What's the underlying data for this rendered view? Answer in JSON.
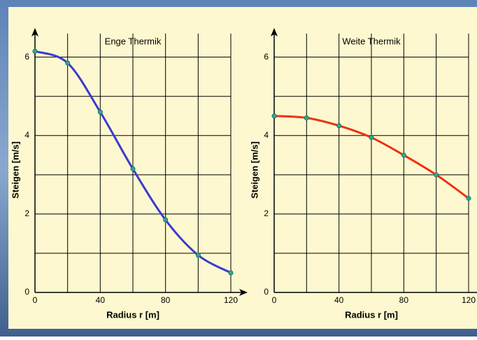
{
  "chart_data": [
    {
      "type": "line",
      "title": "Enge Thermik",
      "x_label": "Radius r [m]",
      "y_label": "Steigen [m/s]",
      "x": [
        0,
        20,
        40,
        60,
        80,
        100,
        120
      ],
      "series": [
        {
          "color": "#3a3ad0",
          "values": [
            6.15,
            5.85,
            4.6,
            3.15,
            1.85,
            0.95,
            0.5
          ]
        }
      ],
      "xlim": [
        0,
        120
      ],
      "xticks": [
        0,
        40,
        80,
        120
      ],
      "xminor": [
        20,
        60,
        100
      ],
      "ylim": [
        0,
        6.6
      ],
      "yticks": [
        0,
        2,
        4,
        6
      ],
      "yminor": [
        1,
        3,
        5
      ],
      "grid": true
    },
    {
      "type": "line",
      "title": "Weite Thermik",
      "x_label": "Radius r [m]",
      "y_label": "Steigen [m/s]",
      "x": [
        0,
        20,
        40,
        60,
        80,
        100,
        120
      ],
      "series": [
        {
          "color": "#f03010",
          "values": [
            4.5,
            4.45,
            4.25,
            3.95,
            3.5,
            3.0,
            2.4
          ]
        }
      ],
      "xlim": [
        0,
        120
      ],
      "xticks": [
        0,
        40,
        80,
        120
      ],
      "xminor": [
        20,
        60,
        100
      ],
      "ylim": [
        0,
        6.6
      ],
      "yticks": [
        0,
        2,
        4,
        6
      ],
      "yminor": [
        1,
        3,
        5
      ],
      "grid": true
    }
  ]
}
